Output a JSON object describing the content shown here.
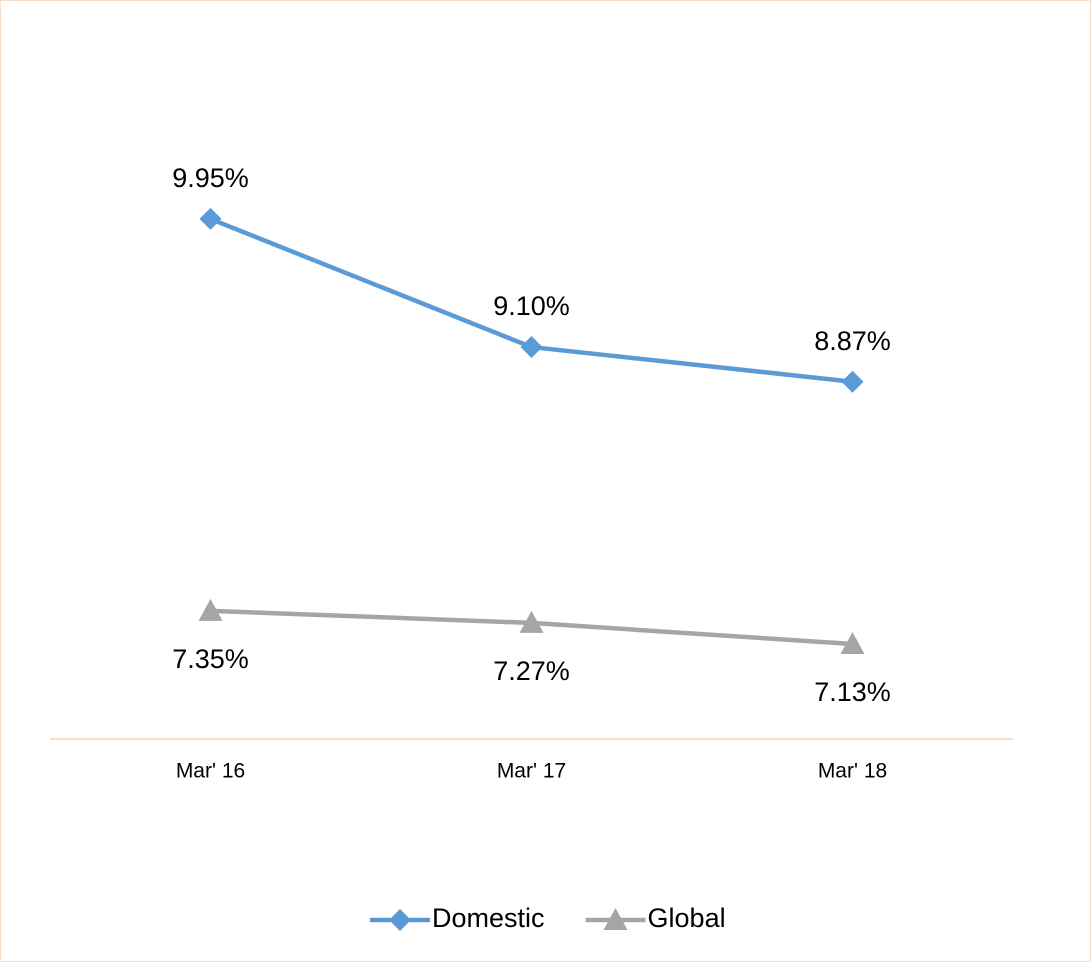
{
  "chart_data": {
    "type": "line",
    "categories": [
      "Mar' 16",
      "Mar' 17",
      "Mar' 18"
    ],
    "series": [
      {
        "name": "Domestic",
        "color": "#5b9bd5",
        "marker": "diamond",
        "label_position": "above",
        "values": [
          9.95,
          9.1,
          8.87
        ],
        "value_labels": [
          "9.95%",
          "9.10%",
          "8.87%"
        ]
      },
      {
        "name": "Global",
        "color": "#a5a5a5",
        "marker": "triangle",
        "label_position": "below",
        "values": [
          7.35,
          7.27,
          7.13
        ],
        "value_labels": [
          "7.35%",
          "7.27%",
          "7.13%"
        ]
      }
    ],
    "ylim": [
      6.5,
      10.5
    ],
    "legend": "bottom"
  }
}
